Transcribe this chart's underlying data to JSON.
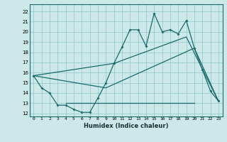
{
  "xlabel": "Humidex (Indice chaleur)",
  "bg_color": "#cce8e8",
  "grid_color": "#99cccc",
  "line_color": "#1a6b6b",
  "xlim": [
    -0.5,
    23.5
  ],
  "ylim": [
    11.7,
    22.7
  ],
  "yticks": [
    12,
    13,
    14,
    15,
    16,
    17,
    18,
    19,
    20,
    21,
    22
  ],
  "xticks": [
    0,
    1,
    2,
    3,
    4,
    5,
    6,
    7,
    8,
    9,
    10,
    11,
    12,
    13,
    14,
    15,
    16,
    17,
    18,
    19,
    20,
    21,
    22,
    23
  ],
  "line1_x": [
    0,
    1,
    2,
    3,
    4,
    5,
    6,
    7,
    8,
    9,
    10,
    11,
    12,
    13,
    14,
    15,
    16,
    17,
    18,
    19,
    20,
    21,
    22,
    23
  ],
  "line1_y": [
    15.7,
    14.5,
    14.0,
    12.8,
    12.8,
    12.4,
    12.1,
    12.1,
    13.5,
    15.0,
    16.9,
    18.5,
    20.2,
    20.2,
    18.6,
    21.8,
    20.0,
    20.2,
    19.8,
    21.1,
    18.4,
    16.3,
    14.2,
    13.2
  ],
  "line2_x": [
    0,
    9,
    20,
    23
  ],
  "line2_y": [
    15.7,
    14.5,
    18.4,
    13.2
  ],
  "line3_x": [
    0,
    10,
    19,
    23
  ],
  "line3_y": [
    15.7,
    16.9,
    19.5,
    13.2
  ],
  "line4_x": [
    4,
    20
  ],
  "line4_y": [
    13.0,
    13.0
  ]
}
